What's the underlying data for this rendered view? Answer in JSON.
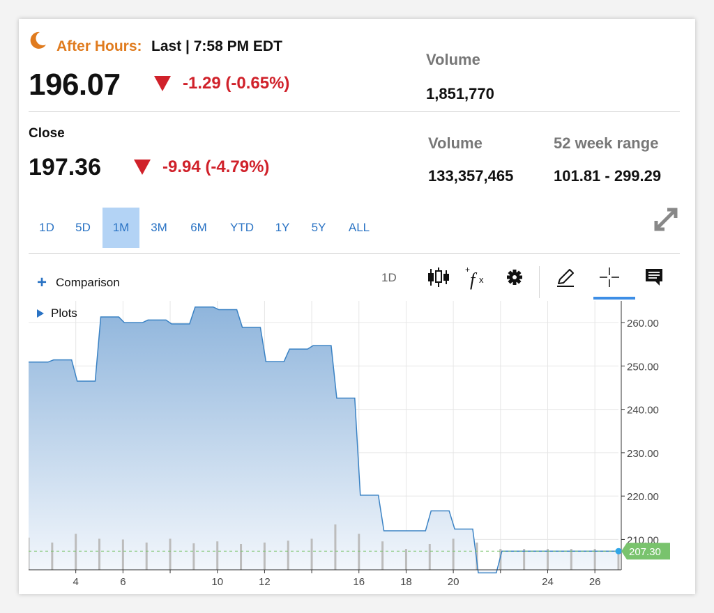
{
  "after_hours": {
    "label": "After Hours:",
    "time": "Last | 7:58 PM EDT",
    "price": "196.07",
    "change": "-1.29 (-0.65%)",
    "volume_label": "Volume",
    "volume": "1,851,770"
  },
  "close": {
    "label": "Close",
    "price": "197.36",
    "change": "-9.94 (-4.79%)",
    "volume_label": "Volume",
    "volume": "133,357,465",
    "range_label": "52 week range",
    "range": "101.81 - 299.29"
  },
  "ranges": [
    "1D",
    "5D",
    "1M",
    "3M",
    "6M",
    "YTD",
    "1Y",
    "5Y",
    "ALL"
  ],
  "active_range": "1M",
  "toolbar": {
    "comparison_label": "Comparison",
    "interval_label": "1D",
    "icons": [
      "candlestick-icon",
      "function-icon",
      "gear-icon",
      "pencil-icon",
      "crosshair-icon",
      "comment-icon"
    ]
  },
  "plots_label": "Plots",
  "colors": {
    "accent": "#2a73c4",
    "down": "#d0212a",
    "after_hours": "#e07b1e",
    "price_tag": "#79c36d"
  },
  "chart_data": {
    "type": "area",
    "x": [
      2,
      3,
      4,
      5,
      6,
      7,
      8,
      9,
      10,
      11,
      12,
      13,
      14,
      15,
      16,
      17,
      18,
      19,
      20,
      21,
      22,
      23,
      24,
      25,
      26,
      27
    ],
    "y": [
      250.9,
      251.4,
      246.5,
      261.3,
      260.0,
      260.6,
      259.7,
      263.6,
      263.0,
      258.9,
      251.0,
      253.9,
      254.7,
      242.6,
      220.2,
      212.0,
      212.0,
      216.6,
      212.4,
      202.3,
      207.3,
      207.3,
      207.3,
      207.3,
      207.3,
      207.3
    ],
    "volume": [
      0.85,
      0.72,
      0.95,
      0.82,
      0.8,
      0.72,
      0.82,
      0.7,
      0.75,
      0.68,
      0.72,
      0.77,
      0.82,
      1.2,
      0.95,
      0.75,
      0.55,
      0.68,
      0.82,
      0.72,
      0.55,
      0.55,
      0.55,
      0.55,
      0.55,
      0.55
    ],
    "xticks": [
      4,
      6,
      8,
      10,
      12,
      14,
      16,
      18,
      20,
      22,
      24,
      26
    ],
    "xtick_labels": [
      "4",
      "6",
      "10",
      "12",
      "16",
      "18",
      "20",
      "24",
      "26"
    ],
    "xtick_label_positions": [
      4,
      6,
      10,
      12,
      16,
      18,
      20,
      24,
      26
    ],
    "yticks": [
      210,
      220,
      230,
      240,
      250,
      260
    ],
    "ytick_labels": [
      "210.00",
      "220.00",
      "230.00",
      "240.00",
      "250.00",
      "260.00"
    ],
    "ylim": [
      203,
      265
    ],
    "last_price_tag": "207.30",
    "last_price": 207.3
  }
}
